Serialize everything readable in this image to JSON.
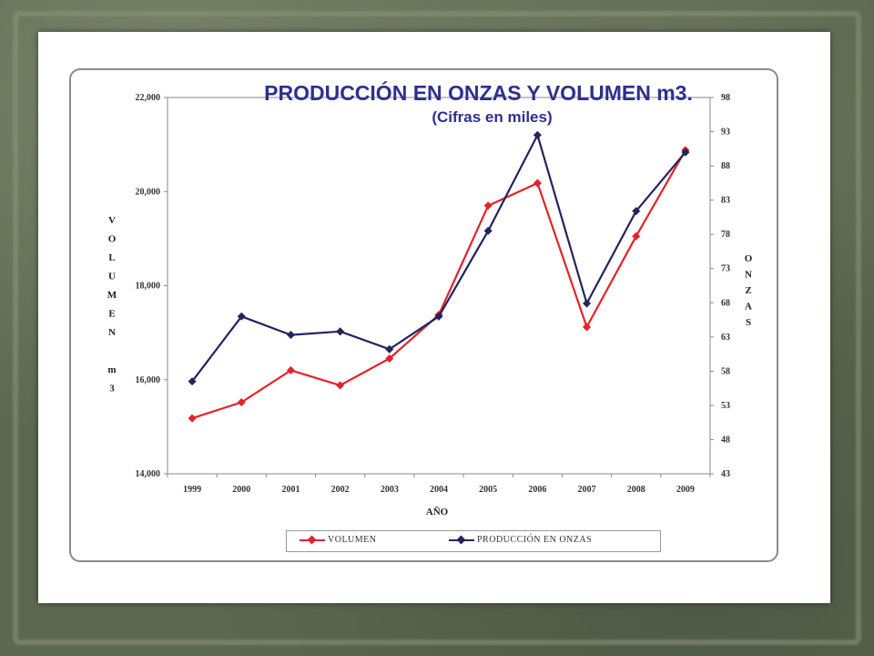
{
  "chart_data": {
    "type": "line",
    "title": "PRODUCCIÓN EN ONZAS Y VOLUMEN m3.",
    "subtitle": "(Cifras en miles)",
    "xlabel": "AÑO",
    "ylabel_left": [
      "V",
      "O",
      "L",
      "U",
      "M",
      "E",
      "N",
      "",
      "m",
      "3"
    ],
    "ylabel_right": [
      "O",
      "N",
      "Z",
      "A",
      "S"
    ],
    "categories": [
      "1999",
      "2000",
      "2001",
      "2002",
      "2003",
      "2004",
      "2005",
      "2006",
      "2007",
      "2008",
      "2009"
    ],
    "y_left": {
      "ylim": [
        14000,
        22000
      ],
      "ticks": [
        "14,000",
        "16,000",
        "18,000",
        "20,000",
        "22,000"
      ],
      "tick_values": [
        14000,
        16000,
        18000,
        20000,
        22000
      ]
    },
    "y_right": {
      "ylim": [
        43,
        98
      ],
      "ticks": [
        "43",
        "48",
        "53",
        "58",
        "63",
        "68",
        "73",
        "78",
        "83",
        "88",
        "93",
        "98"
      ],
      "tick_values": [
        43,
        48,
        53,
        58,
        63,
        68,
        73,
        78,
        83,
        88,
        93,
        98
      ]
    },
    "series": [
      {
        "name": "VOLUMEN",
        "axis": "left",
        "color": "#e3232b",
        "values": [
          15180,
          15520,
          16200,
          15880,
          16450,
          17380,
          19700,
          20180,
          17120,
          19050,
          20880
        ]
      },
      {
        "name": "PRODUCCIÓN EN ONZAS",
        "axis": "right",
        "color": "#23245e",
        "values": [
          56.5,
          66,
          63.3,
          63.8,
          61.2,
          66,
          78.5,
          92.5,
          67.9,
          81.4,
          90
        ]
      }
    ],
    "legend_position": "bottom",
    "grid": false
  }
}
